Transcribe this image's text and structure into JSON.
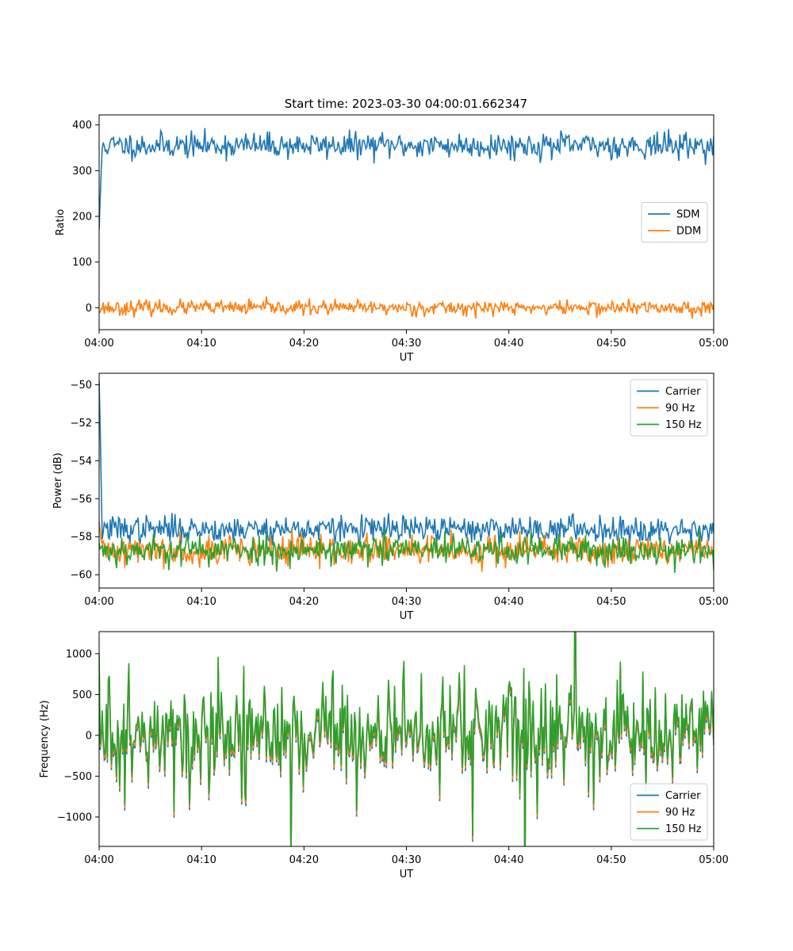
{
  "figure": {
    "title": "Start time: 2023-03-30 04:00:01.662347"
  },
  "chart_data": [
    {
      "type": "line",
      "xlabel": "UT",
      "ylabel": "Ratio",
      "xlim": [
        "04:00",
        "05:00"
      ],
      "ylim": [
        -48,
        422
      ],
      "xticks": [
        "04:00",
        "04:10",
        "04:20",
        "04:30",
        "04:40",
        "04:50",
        "05:00"
      ],
      "yticks": [
        0,
        100,
        200,
        300,
        400
      ],
      "legend": "center-right",
      "series": [
        {
          "name": "SDM",
          "color": "#1f77b4",
          "base": 355,
          "amp": 14,
          "start": 170,
          "decay": 0.6,
          "seed": 11
        },
        {
          "name": "DDM",
          "color": "#ff7f0e",
          "base": 0,
          "amp": 8,
          "start": -10,
          "decay": 0,
          "seed": 23
        }
      ]
    },
    {
      "type": "line",
      "xlabel": "UT",
      "ylabel": "Power (dB)",
      "xlim": [
        "04:00",
        "05:00"
      ],
      "ylim": [
        -60.7,
        -49.4
      ],
      "xticks": [
        "04:00",
        "04:10",
        "04:20",
        "04:30",
        "04:40",
        "04:50",
        "05:00"
      ],
      "yticks": [
        -60,
        -58,
        -56,
        -54,
        -52,
        -50
      ],
      "legend": "top-right",
      "series": [
        {
          "name": "Carrier",
          "color": "#1f77b4",
          "base": -57.6,
          "amp": 0.35,
          "start": -49.8,
          "decay": 0.5,
          "seed": 37
        },
        {
          "name": "90 Hz",
          "color": "#ff7f0e",
          "base": -58.7,
          "amp": 0.4,
          "start": -57.2,
          "decay": 0.5,
          "seed": 41
        },
        {
          "name": "150 Hz",
          "color": "#2ca02c",
          "base": -58.7,
          "amp": 0.4,
          "start": -58.3,
          "decay": 0.5,
          "seed": 53
        }
      ]
    },
    {
      "type": "line",
      "xlabel": "UT",
      "ylabel": "Frequency (Hz)",
      "xlim": [
        "04:00",
        "05:00"
      ],
      "ylim": [
        -1360,
        1270
      ],
      "xticks": [
        "04:00",
        "04:10",
        "04:20",
        "04:30",
        "04:40",
        "04:50",
        "05:00"
      ],
      "yticks": [
        -1000,
        -500,
        0,
        500,
        1000
      ],
      "legend": "bottom-right",
      "series": [
        {
          "name": "Carrier",
          "color": "#1f77b4",
          "base": -40,
          "amp": 380,
          "start": 950,
          "decay": 0,
          "seed": 71
        },
        {
          "name": "90 Hz",
          "color": "#ff7f0e",
          "base": -10,
          "amp": 380,
          "start": 980,
          "decay": 0,
          "seed": 71
        },
        {
          "name": "150 Hz",
          "color": "#2ca02c",
          "base": 30,
          "amp": 380,
          "start": 1000,
          "decay": 0,
          "seed": 71
        }
      ]
    }
  ]
}
